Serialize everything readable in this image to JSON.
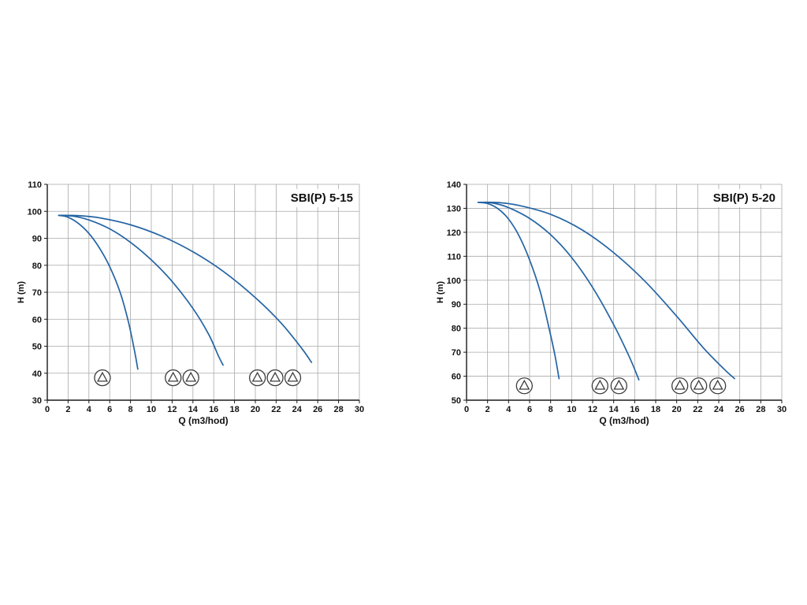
{
  "page": {
    "background": "#ffffff"
  },
  "chart_data": [
    {
      "type": "line",
      "title": "SBI(P) 5-15",
      "xlabel": "Q (m3/hod)",
      "ylabel": "H (m)",
      "xlim": [
        0,
        30
      ],
      "ylim": [
        30,
        110
      ],
      "xtick_step": 2,
      "ytick_step": 10,
      "grid": true,
      "curve_color": "#2464a4",
      "axis_color": "#1a1a1a",
      "grid_color": "#a9a9a9",
      "series": [
        {
          "name": "pump-curve-1",
          "points": [
            [
              1.1,
              98.5
            ],
            [
              2,
              97.8
            ],
            [
              3,
              95.5
            ],
            [
              4,
              91.8
            ],
            [
              5,
              86.5
            ],
            [
              6,
              79.5
            ],
            [
              7,
              70
            ],
            [
              7.8,
              59
            ],
            [
              8.4,
              48
            ],
            [
              8.7,
              41.5
            ]
          ]
        },
        {
          "name": "pump-curve-2",
          "points": [
            [
              1.1,
              98.5
            ],
            [
              2.5,
              98.2
            ],
            [
              4,
              96.8
            ],
            [
              6,
              93.5
            ],
            [
              8,
              88.5
            ],
            [
              10,
              82
            ],
            [
              12,
              74
            ],
            [
              14,
              64
            ],
            [
              15.5,
              54.5
            ],
            [
              16.5,
              46
            ],
            [
              16.9,
              43
            ]
          ]
        },
        {
          "name": "pump-curve-3",
          "points": [
            [
              1.1,
              98.5
            ],
            [
              3,
              98.4
            ],
            [
              5,
              97.6
            ],
            [
              8,
              95
            ],
            [
              11,
              90.8
            ],
            [
              14,
              85
            ],
            [
              17,
              77.5
            ],
            [
              20,
              68
            ],
            [
              22.5,
              58.5
            ],
            [
              24.5,
              49
            ],
            [
              25.4,
              44
            ]
          ]
        }
      ],
      "pump_symbols": {
        "h": 38.3,
        "q_groups": [
          [
            5.3
          ],
          [
            12.1,
            13.8
          ],
          [
            20.2,
            21.9,
            23.6
          ]
        ]
      }
    },
    {
      "type": "line",
      "title": "SBI(P) 5-20",
      "xlabel": "Q (m3/hod)",
      "ylabel": "H (m)",
      "xlim": [
        0,
        30
      ],
      "ylim": [
        50,
        140
      ],
      "xtick_step": 2,
      "ytick_step": 10,
      "grid": true,
      "curve_color": "#2464a4",
      "axis_color": "#1a1a1a",
      "grid_color": "#a9a9a9",
      "series": [
        {
          "name": "pump-curve-1",
          "points": [
            [
              1.1,
              132.5
            ],
            [
              2,
              132
            ],
            [
              3,
              129.8
            ],
            [
              4,
              125.5
            ],
            [
              5,
              118.5
            ],
            [
              6,
              108.5
            ],
            [
              7,
              95.5
            ],
            [
              7.8,
              81
            ],
            [
              8.4,
              69
            ],
            [
              8.8,
              59
            ]
          ]
        },
        {
          "name": "pump-curve-2",
          "points": [
            [
              1.1,
              132.5
            ],
            [
              2.5,
              132.2
            ],
            [
              4,
              130.3
            ],
            [
              6,
              125.8
            ],
            [
              8,
              119
            ],
            [
              10,
              109.5
            ],
            [
              12,
              97
            ],
            [
              14,
              81.5
            ],
            [
              15.5,
              68
            ],
            [
              16.4,
              58.5
            ]
          ]
        },
        {
          "name": "pump-curve-3",
          "points": [
            [
              1.1,
              132.5
            ],
            [
              3,
              132.4
            ],
            [
              5,
              131.2
            ],
            [
              8,
              127.5
            ],
            [
              11,
              121
            ],
            [
              14,
              111.5
            ],
            [
              17,
              99.5
            ],
            [
              20,
              85
            ],
            [
              22.5,
              72
            ],
            [
              24.5,
              63
            ],
            [
              25.5,
              59
            ]
          ]
        }
      ],
      "pump_symbols": {
        "h": 56,
        "q_groups": [
          [
            5.5
          ],
          [
            12.7,
            14.5
          ],
          [
            20.3,
            22.1,
            23.9
          ]
        ]
      }
    }
  ]
}
